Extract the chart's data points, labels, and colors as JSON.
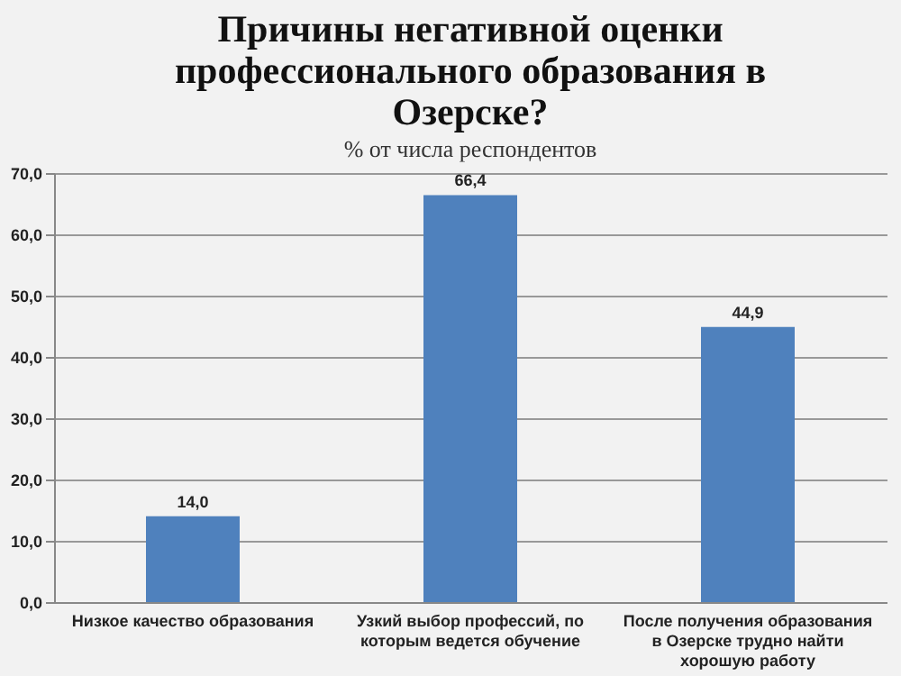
{
  "chart_data": {
    "type": "bar",
    "title": "Причины негативной оценки профессионального образования в Озерске?",
    "subtitle": "% от числа респондентов",
    "categories": [
      "Низкое качество образования",
      "Узкий выбор профессий, по которым ведется обучение",
      "После получения образования в Озерске трудно найти хорошую работу"
    ],
    "values": [
      14.0,
      66.4,
      44.9
    ],
    "value_labels": [
      "14,0",
      "66,4",
      "44,9"
    ],
    "color": "#4f81bd",
    "ylim": [
      0,
      70
    ],
    "yticks": [
      {
        "value": 0,
        "label": "0,0"
      },
      {
        "value": 10,
        "label": "10,0"
      },
      {
        "value": 20,
        "label": "20,0"
      },
      {
        "value": 30,
        "label": "30,0"
      },
      {
        "value": 40,
        "label": "40,0"
      },
      {
        "value": 50,
        "label": "50,0"
      },
      {
        "value": 60,
        "label": "60,0"
      },
      {
        "value": 70,
        "label": "70,0"
      }
    ],
    "grid": "y"
  }
}
